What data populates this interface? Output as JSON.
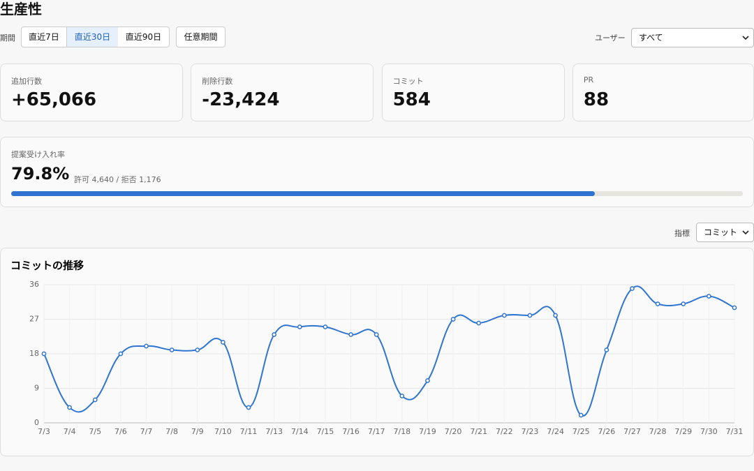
{
  "header": {
    "title": "生産性"
  },
  "period": {
    "label": "期間",
    "options": [
      "直近7日",
      "直近30日",
      "直近90日"
    ],
    "selected_index": 1,
    "custom": "任意期間"
  },
  "user_filter": {
    "label": "ユーザー",
    "value": "すべて"
  },
  "stats": [
    {
      "label": "追加行数",
      "value": "+65,066"
    },
    {
      "label": "削除行数",
      "value": "-23,424"
    },
    {
      "label": "コミット",
      "value": "584"
    },
    {
      "label": "PR",
      "value": "88"
    }
  ],
  "acceptance": {
    "label": "提案受け入れ率",
    "rate": 79.8,
    "rate_label": "79.8%",
    "detail": "許可 4,640 / 拒否 1,176"
  },
  "metric_filter": {
    "label": "指標",
    "value": "コミット"
  },
  "chart_data": {
    "type": "line",
    "title": "コミットの推移",
    "categories": [
      "7/3",
      "7/4",
      "7/5",
      "7/6",
      "7/7",
      "7/8",
      "7/9",
      "7/10",
      "7/11",
      "7/13",
      "7/14",
      "7/15",
      "7/16",
      "7/17",
      "7/18",
      "7/19",
      "7/20",
      "7/21",
      "7/22",
      "7/23",
      "7/24",
      "7/25",
      "7/26",
      "7/27",
      "7/28",
      "7/29",
      "7/30",
      "7/31"
    ],
    "values": [
      18,
      4,
      6,
      18,
      20,
      19,
      19,
      21,
      4,
      23,
      25,
      25,
      23,
      23,
      7,
      11,
      27,
      26,
      28,
      28,
      28,
      2,
      19,
      35,
      31,
      31,
      33,
      30
    ],
    "color": "#2f74d0",
    "ylim": [
      0,
      36
    ],
    "yticks": [
      0,
      9,
      18,
      27,
      36
    ],
    "grid": true,
    "smooth": true
  }
}
